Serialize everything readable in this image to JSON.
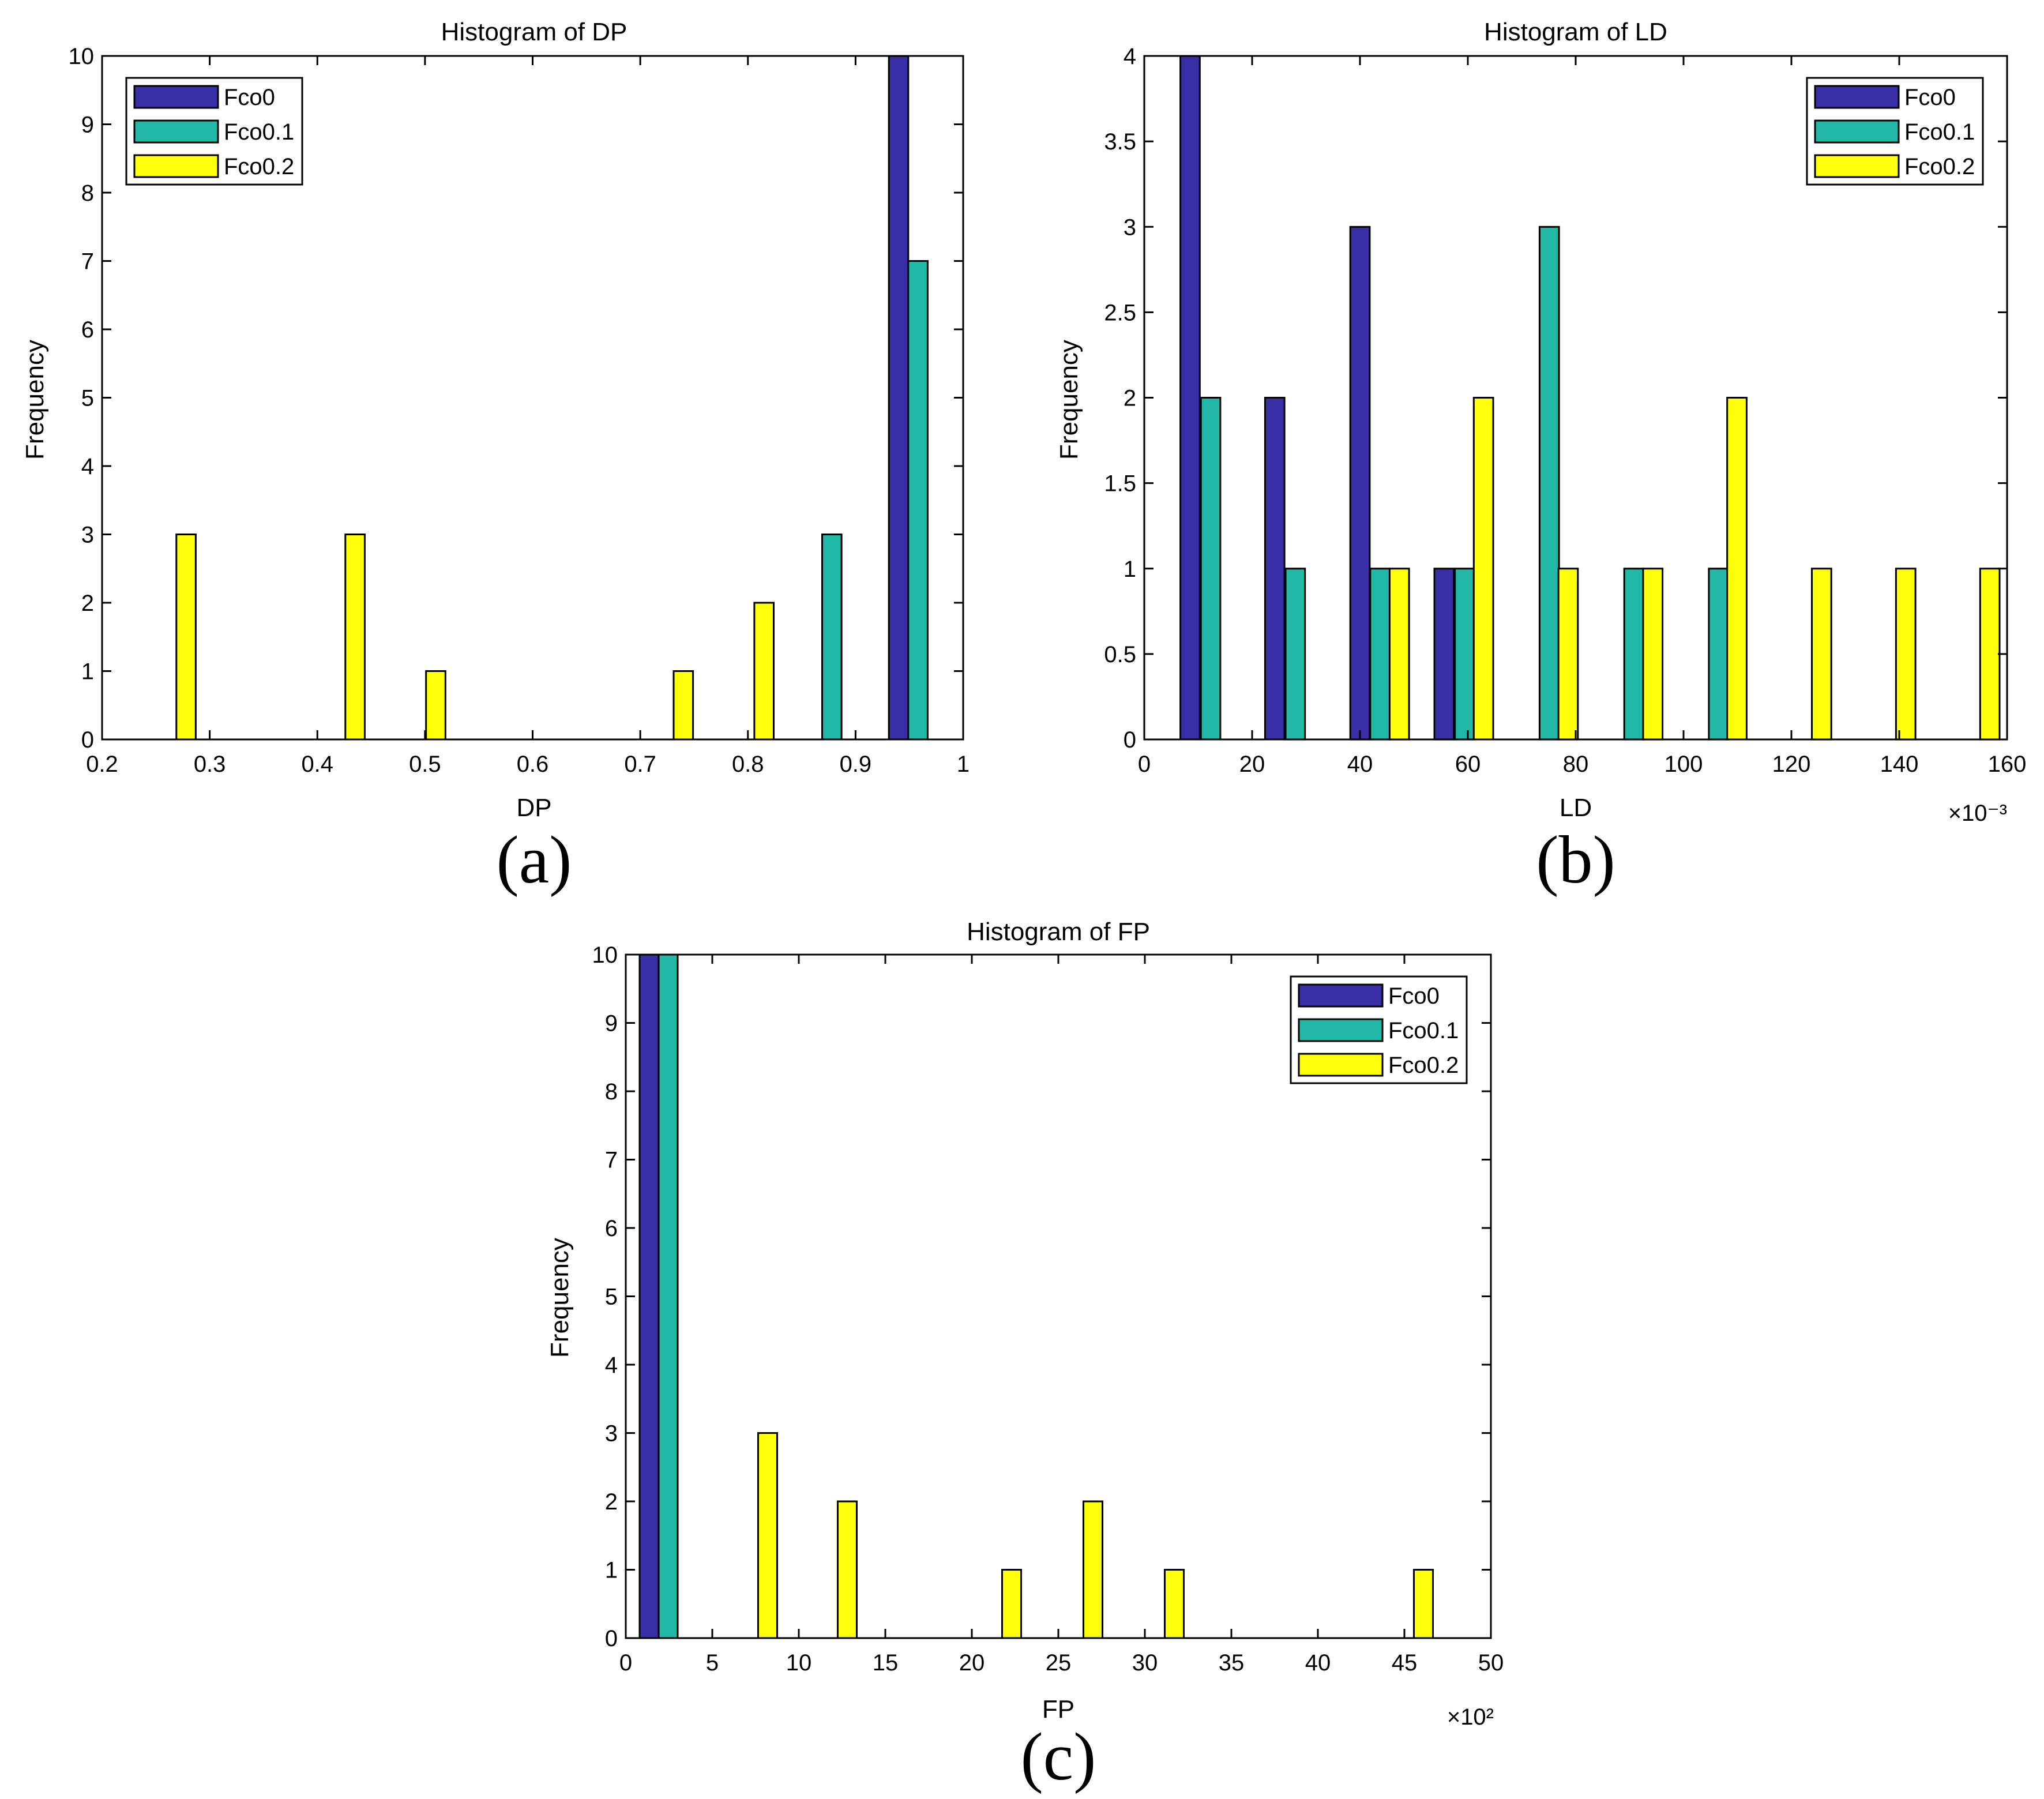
{
  "colors": {
    "Fco0": "#3a2ea6",
    "Fco0.1": "#21b9a6",
    "Fco0.2": "#ffff0a",
    "axis": "#000000",
    "background": "#ffffff"
  },
  "chart_data": [
    {
      "type": "bar",
      "title": "Histogram of DP",
      "xlabel": "DP",
      "ylabel": "Frequency",
      "panel_label": "(a)",
      "xlim": [
        0.2,
        1
      ],
      "ylim": [
        0,
        10
      ],
      "xticks": [
        0.2,
        0.3,
        0.4,
        0.5,
        0.6,
        0.7,
        0.8,
        0.9,
        1
      ],
      "xtick_labels": [
        "0.2",
        "0.3",
        "0.4",
        "0.5",
        "0.6",
        "0.7",
        "0.8",
        "0.9",
        "1"
      ],
      "yticks": [
        0,
        1,
        2,
        3,
        4,
        5,
        6,
        7,
        8,
        9,
        10
      ],
      "ytick_labels": [
        "0",
        "1",
        "2",
        "3",
        "4",
        "5",
        "6",
        "7",
        "8",
        "9",
        "10"
      ],
      "exponent_label": "",
      "bar_width": 0.018,
      "legend_position": "top-left",
      "legend": [
        "Fco0",
        "Fco0.1",
        "Fco0.2"
      ],
      "series": [
        {
          "name": "Fco0",
          "x": [
            0.94
          ],
          "values": [
            10
          ]
        },
        {
          "name": "Fco0.1",
          "x": [
            0.878,
            0.958
          ],
          "values": [
            3,
            7
          ]
        },
        {
          "name": "Fco0.2",
          "x": [
            0.278,
            0.435,
            0.51,
            0.74,
            0.815
          ],
          "values": [
            3,
            3,
            1,
            1,
            2
          ]
        }
      ]
    },
    {
      "type": "bar",
      "title": "Histogram of LD",
      "xlabel": "LD",
      "ylabel": "Frequency",
      "panel_label": "(b)",
      "xlim": [
        0,
        160
      ],
      "ylim": [
        0,
        4
      ],
      "xticks": [
        0,
        20,
        40,
        60,
        80,
        100,
        120,
        140,
        160
      ],
      "xtick_labels": [
        "0",
        "20",
        "40",
        "60",
        "80",
        "100",
        "120",
        "140",
        "160"
      ],
      "yticks": [
        0,
        0.5,
        1,
        1.5,
        2,
        2.5,
        3,
        3.5,
        4
      ],
      "ytick_labels": [
        "0",
        "0.5",
        "1",
        "1.5",
        "2",
        "2.5",
        "3",
        "3.5",
        "4"
      ],
      "exponent_label": "×10⁻³",
      "bar_width": 3.6,
      "legend_position": "top-right",
      "legend": [
        "Fco0",
        "Fco0.1",
        "Fco0.2"
      ],
      "series": [
        {
          "name": "Fco0",
          "x": [
            8.5,
            24.2,
            40,
            55.6
          ],
          "values": [
            4,
            2,
            3,
            1
          ]
        },
        {
          "name": "Fco0.1",
          "x": [
            12.3,
            28,
            43.7,
            59.4,
            75.1,
            90.8,
            106.5
          ],
          "values": [
            2,
            1,
            1,
            1,
            3,
            1,
            1
          ]
        },
        {
          "name": "Fco0.2",
          "x": [
            47.3,
            62.9,
            78.6,
            94.3,
            109.9,
            125.6,
            141.2,
            156.8
          ],
          "values": [
            1,
            2,
            1,
            1,
            2,
            1,
            1,
            1
          ]
        }
      ]
    },
    {
      "type": "bar",
      "title": "Histogram of FP",
      "xlabel": "FP",
      "ylabel": "Frequency",
      "panel_label": "(c)",
      "xlim": [
        0,
        50
      ],
      "ylim": [
        0,
        10
      ],
      "xticks": [
        0,
        5,
        10,
        15,
        20,
        25,
        30,
        35,
        40,
        45,
        50
      ],
      "xtick_labels": [
        "0",
        "5",
        "10",
        "15",
        "20",
        "25",
        "30",
        "35",
        "40",
        "45",
        "50"
      ],
      "yticks": [
        0,
        1,
        2,
        3,
        4,
        5,
        6,
        7,
        8,
        9,
        10
      ],
      "ytick_labels": [
        "0",
        "1",
        "2",
        "3",
        "4",
        "5",
        "6",
        "7",
        "8",
        "9",
        "10"
      ],
      "exponent_label": "×10²",
      "bar_width": 1.1,
      "legend_position": "top-right",
      "legend": [
        "Fco0",
        "Fco0.1",
        "Fco0.2"
      ],
      "series": [
        {
          "name": "Fco0",
          "x": [
            1.35
          ],
          "values": [
            10
          ]
        },
        {
          "name": "Fco0.1",
          "x": [
            2.45
          ],
          "values": [
            10
          ]
        },
        {
          "name": "Fco0.2",
          "x": [
            8.2,
            12.8,
            22.3,
            27,
            31.7,
            46.1
          ],
          "values": [
            3,
            2,
            1,
            2,
            1,
            1
          ]
        }
      ]
    }
  ]
}
